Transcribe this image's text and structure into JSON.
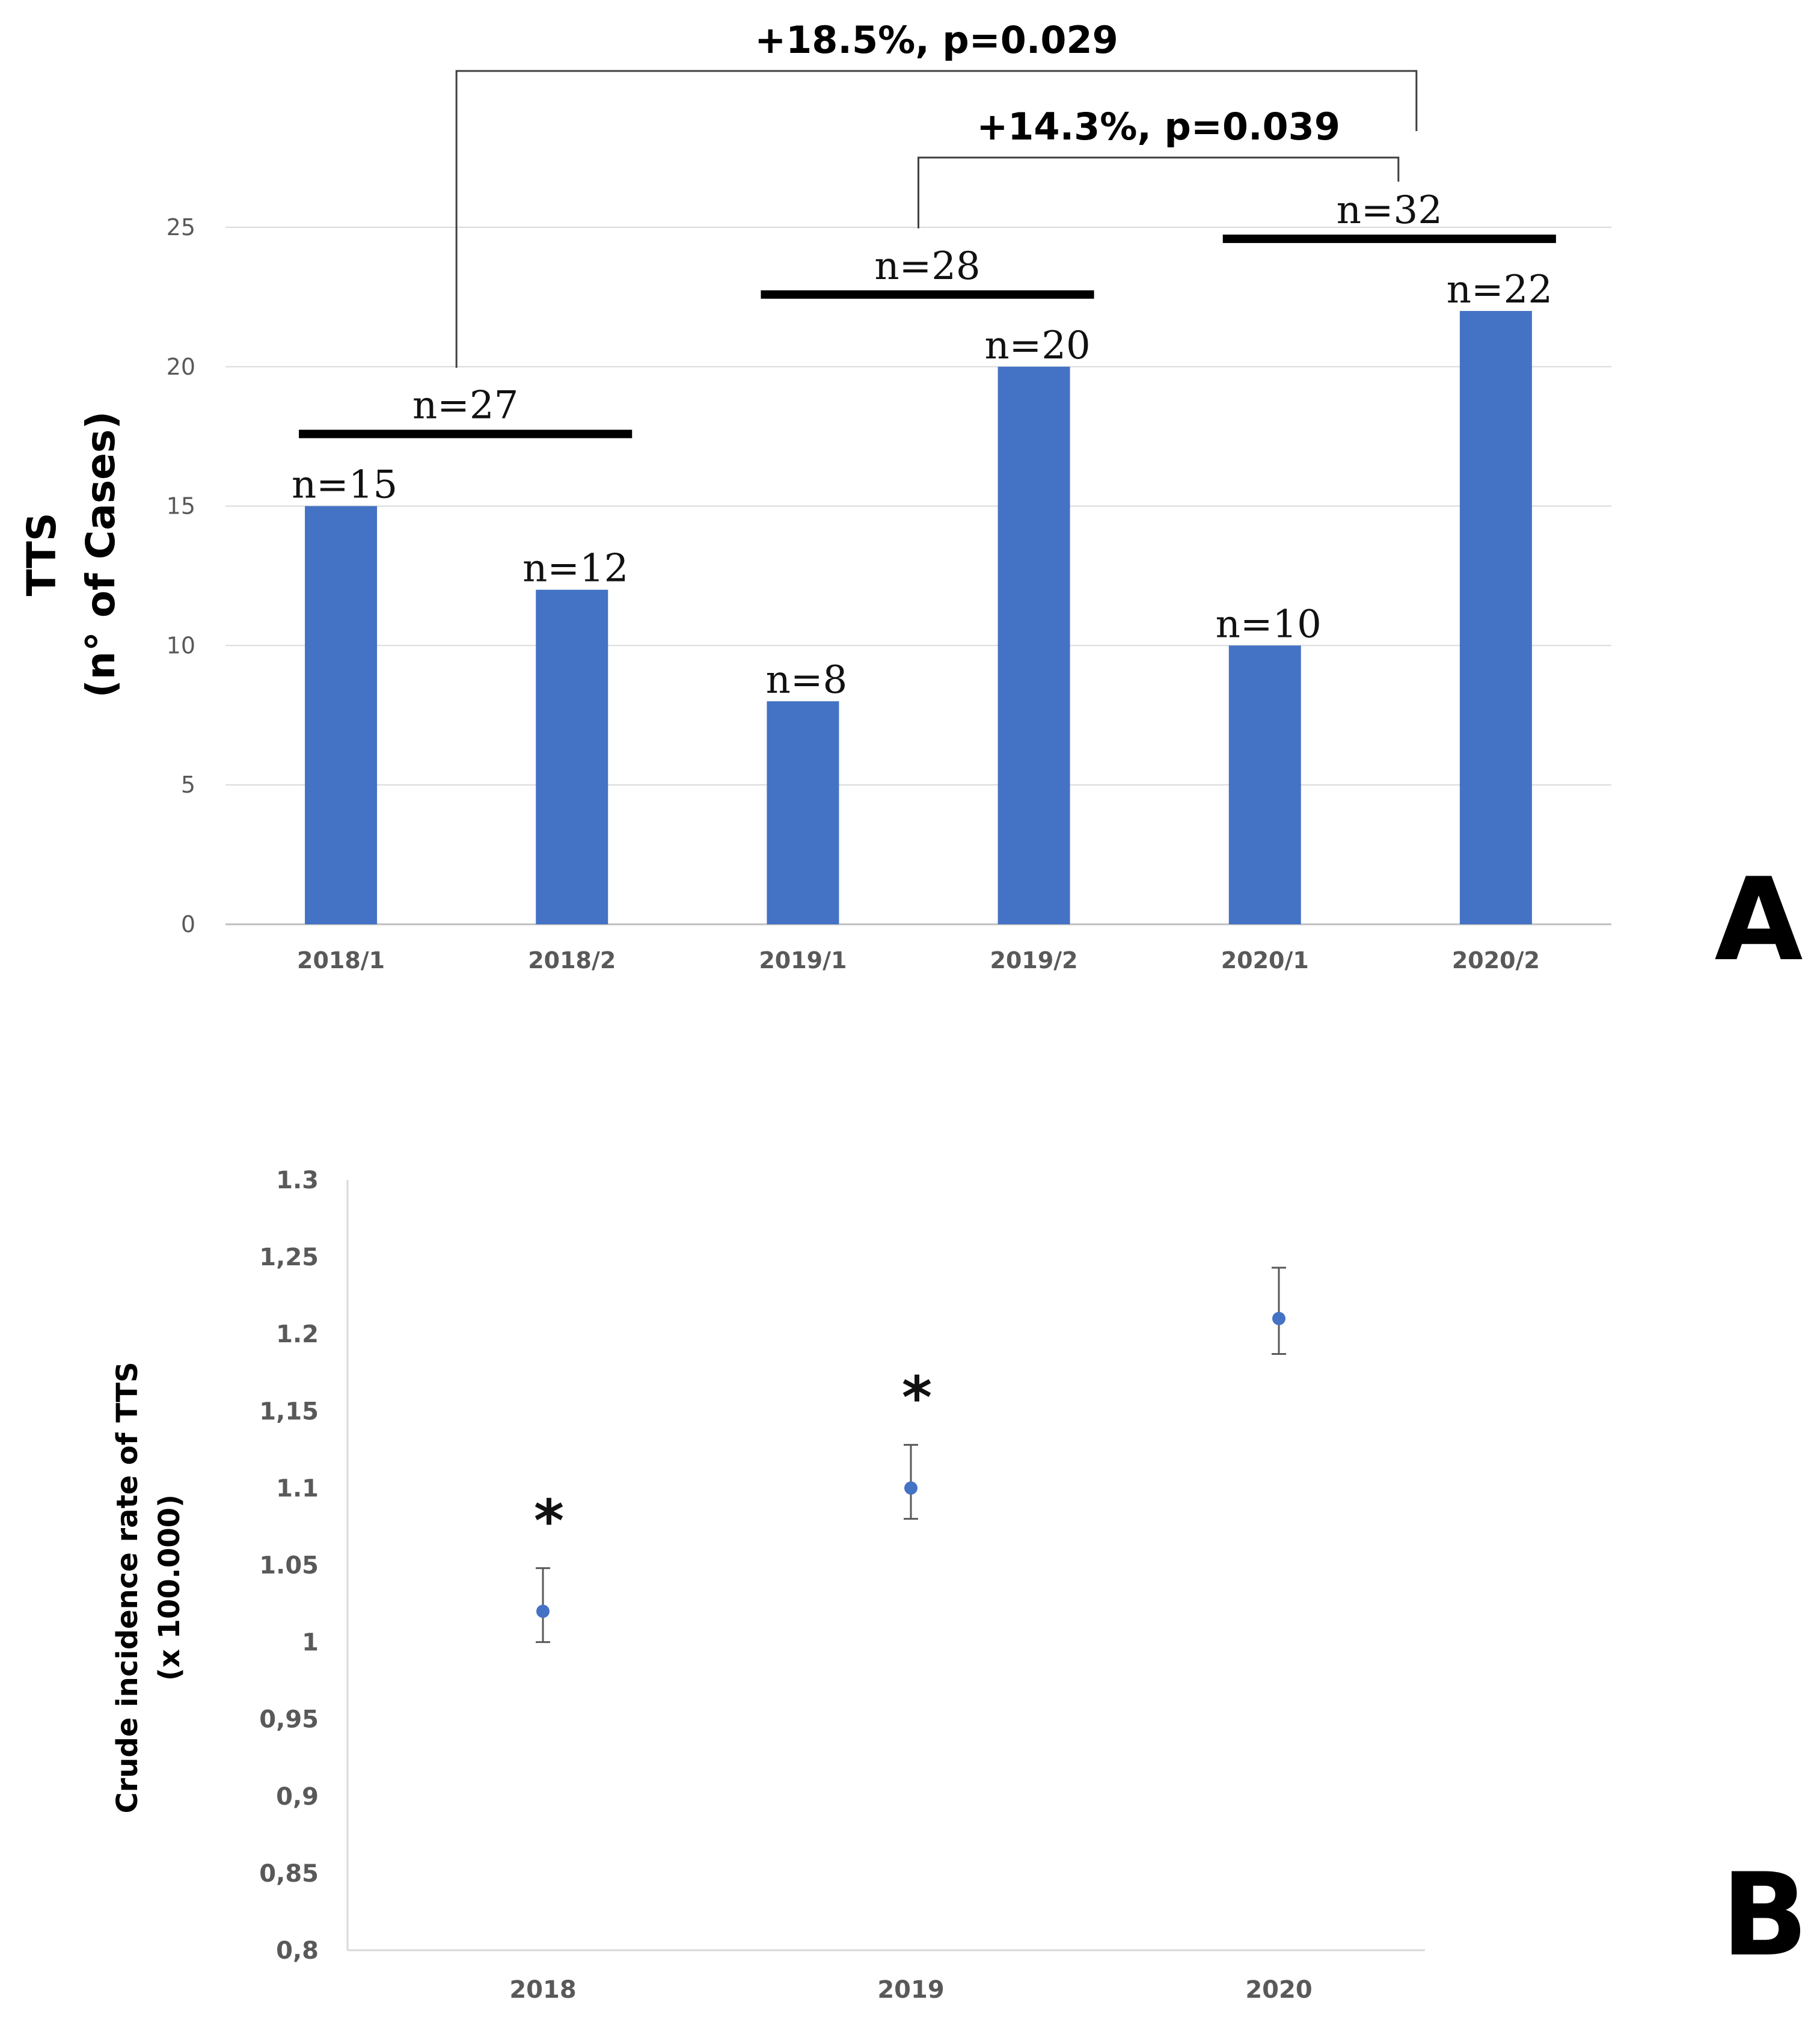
{
  "chart_data": [
    {
      "panel": "A",
      "type": "bar",
      "ylabel_line1": "TTS",
      "ylabel_line2": "(n° of Cases)",
      "categories": [
        "2018/1",
        "2018/2",
        "2019/1",
        "2019/2",
        "2020/1",
        "2020/2"
      ],
      "values": [
        15,
        12,
        8,
        20,
        10,
        22
      ],
      "data_labels": [
        "n=15",
        "n=12",
        "n=8",
        "n=20",
        "n=10",
        "n=22"
      ],
      "ylim": [
        0,
        25
      ],
      "yticks": [
        0,
        5,
        10,
        15,
        20,
        25
      ],
      "grid": true,
      "color": "#4472c4",
      "year_totals": [
        {
          "label": "n=27",
          "from": "2018/1",
          "to": "2018/2"
        },
        {
          "label": "n=28",
          "from": "2019/1",
          "to": "2019/2"
        },
        {
          "label": "n=32",
          "from": "2020/1",
          "to": "2020/2"
        }
      ],
      "comparisons": [
        {
          "label": "+18.5%, p=0.029",
          "from": "2018",
          "to": "2020"
        },
        {
          "label": "+14.3%, p=0.039",
          "from": "2019",
          "to": "2020"
        }
      ]
    },
    {
      "panel": "B",
      "type": "scatter",
      "ylabel_line1": "Crude incidence rate of TTS",
      "ylabel_line2": "(x 100.000)",
      "x": [
        "2018",
        "2019",
        "2020"
      ],
      "y": [
        1.02,
        1.1,
        1.21
      ],
      "err_low": [
        1.0,
        1.08,
        1.187
      ],
      "err_high": [
        1.048,
        1.128,
        1.243
      ],
      "significance_markers": [
        "*",
        "*",
        ""
      ],
      "ylim": [
        0.8,
        1.3
      ],
      "ytick_labels": [
        "0,8",
        "0,85",
        "0,9",
        "0,95",
        "1",
        "1.05",
        "1.1",
        "1,15",
        "1.2",
        "1,25",
        "1.3"
      ],
      "grid": false,
      "color": "#4472c4"
    }
  ],
  "panel_labels": [
    "A",
    "B"
  ]
}
